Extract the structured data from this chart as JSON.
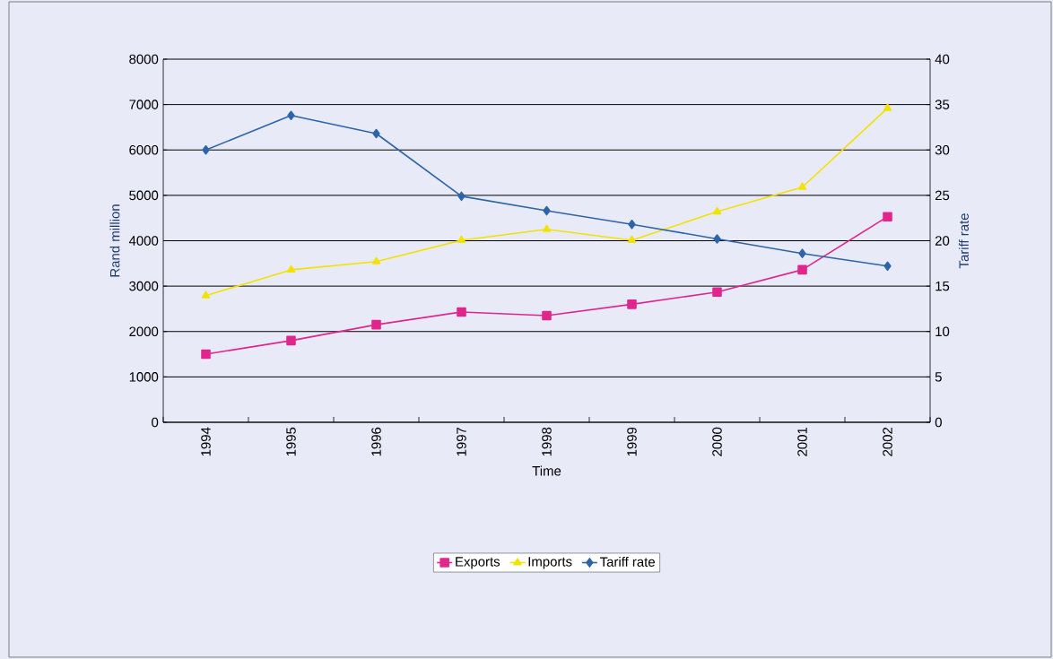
{
  "chart_data": {
    "type": "line",
    "xlabel": "Time",
    "ylabel": "Rand million",
    "y2label": "Tariff rate",
    "categories": [
      "1994",
      "1995",
      "1996",
      "1997",
      "1998",
      "1999",
      "2000",
      "2001",
      "2002"
    ],
    "series": [
      {
        "name": "Exports",
        "color": "#e0268c",
        "marker": "square",
        "values": [
          1500,
          1800,
          2150,
          2430,
          2350,
          2600,
          2870,
          3360,
          4530
        ]
      },
      {
        "name": "Imports",
        "color": "#f2e200",
        "marker": "triangle",
        "values": [
          2790,
          3360,
          3540,
          4010,
          4250,
          4010,
          4640,
          5180,
          6920
        ]
      },
      {
        "name": "Tariff rate",
        "color": "#2e64a8",
        "marker": "diamond",
        "axis": "y2",
        "values": [
          30.0,
          33.8,
          31.8,
          24.9,
          23.3,
          21.8,
          20.2,
          18.6,
          17.2
        ]
      }
    ],
    "ylim": [
      0,
      8000
    ],
    "yticks": [
      0,
      1000,
      2000,
      3000,
      4000,
      5000,
      6000,
      7000,
      8000
    ],
    "y2lim": [
      0,
      40
    ],
    "y2ticks": [
      0,
      5,
      10,
      15,
      20,
      25,
      30,
      35,
      40
    ],
    "grid": "y",
    "legend": "bottom",
    "line_style": "solid"
  }
}
